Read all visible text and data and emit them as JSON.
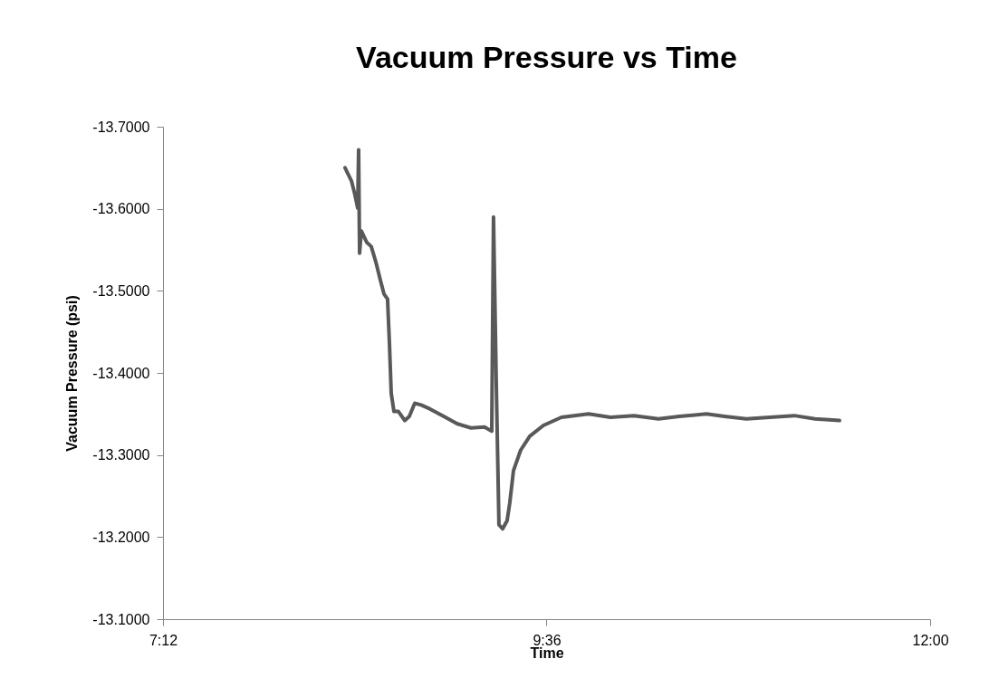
{
  "chart_data": {
    "type": "line",
    "title": "Vacuum Pressure vs Time",
    "xlabel": "Time",
    "ylabel": "Vacuum Pressure (psi)",
    "xlim": [
      7.2,
      12.0
    ],
    "xticks": [
      {
        "value": 7.2,
        "label": "7:12"
      },
      {
        "value": 9.6,
        "label": "9:36"
      },
      {
        "value": 12.0,
        "label": "12:00"
      }
    ],
    "ylim": [
      -13.1,
      -13.7
    ],
    "yticks": [
      {
        "value": -13.7,
        "label": "-13.7000"
      },
      {
        "value": -13.6,
        "label": "-13.6000"
      },
      {
        "value": -13.5,
        "label": "-13.5000"
      },
      {
        "value": -13.4,
        "label": "-13.4000"
      },
      {
        "value": -13.3,
        "label": "-13.3000"
      },
      {
        "value": -13.2,
        "label": "-13.2000"
      },
      {
        "value": -13.1,
        "label": "-13.1000"
      }
    ],
    "grid": false,
    "marker": "none",
    "line_style": "solid",
    "series": [
      {
        "color": "#595959",
        "x": [
          8.339,
          8.379,
          8.401,
          8.418,
          8.424,
          8.43,
          8.441,
          8.475,
          8.503,
          8.532,
          8.56,
          8.583,
          8.605,
          8.617,
          8.628,
          8.645,
          8.673,
          8.713,
          8.741,
          8.775,
          8.815,
          8.872,
          8.957,
          9.042,
          9.127,
          9.212,
          9.257,
          9.268,
          9.285,
          9.302,
          9.325,
          9.353,
          9.37,
          9.393,
          9.438,
          9.495,
          9.58,
          9.693,
          9.863,
          10.0,
          10.147,
          10.3,
          10.43,
          10.6,
          10.714,
          10.85,
          10.997,
          11.15,
          11.28,
          11.433
        ],
        "values": [
          -13.65,
          -13.634,
          -13.617,
          -13.601,
          -13.672,
          -13.546,
          -13.573,
          -13.559,
          -13.554,
          -13.535,
          -13.513,
          -13.496,
          -13.49,
          -13.435,
          -13.375,
          -13.353,
          -13.353,
          -13.342,
          -13.347,
          -13.363,
          -13.361,
          -13.356,
          -13.347,
          -13.338,
          -13.333,
          -13.334,
          -13.329,
          -13.59,
          -13.391,
          -13.215,
          -13.21,
          -13.22,
          -13.242,
          -13.281,
          -13.306,
          -13.323,
          -13.336,
          -13.346,
          -13.35,
          -13.346,
          -13.348,
          -13.344,
          -13.347,
          -13.35,
          -13.347,
          -13.344,
          -13.346,
          -13.348,
          -13.344,
          -13.342
        ]
      }
    ]
  }
}
